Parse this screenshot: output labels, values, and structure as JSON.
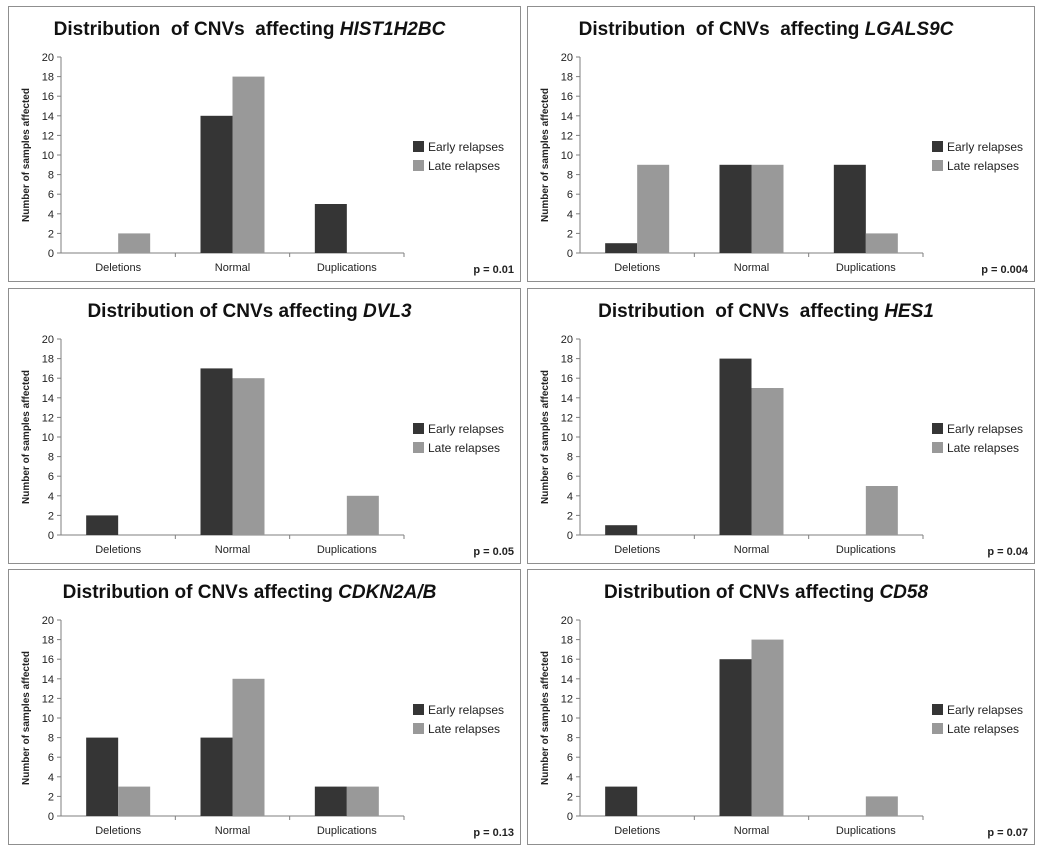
{
  "colors": {
    "early": "#353535",
    "late": "#999999",
    "axis": "#7f7f7f",
    "border": "#8f8f8f"
  },
  "chart_data": [
    {
      "type": "bar",
      "title_prefix": "Distribution  of CNVs  affecting ",
      "title_gene": "HIST1H2BC",
      "ylabel": "Number of samples affected",
      "ylim": [
        0,
        20
      ],
      "yticks": [
        "0",
        "2",
        "4",
        "6",
        "8",
        "10",
        "12",
        "14",
        "16",
        "18",
        "20"
      ],
      "categories": [
        "Deletions",
        "Normal",
        "Duplications"
      ],
      "series": [
        {
          "name": "Early relapses",
          "values": [
            0,
            14,
            5
          ]
        },
        {
          "name": "Late relapses",
          "values": [
            2,
            18,
            0
          ]
        }
      ],
      "p_value": "p = 0.01",
      "legend_position": "right"
    },
    {
      "type": "bar",
      "title_prefix": "Distribution  of CNVs  affecting ",
      "title_gene": "LGALS9C",
      "ylabel": "Number of samples affected",
      "ylim": [
        0,
        20
      ],
      "yticks": [
        "0",
        "2",
        "4",
        "6",
        "8",
        "10",
        "12",
        "14",
        "16",
        "18",
        "20"
      ],
      "categories": [
        "Deletions",
        "Normal",
        "Duplications"
      ],
      "series": [
        {
          "name": "Early relapses",
          "values": [
            1,
            9,
            9
          ]
        },
        {
          "name": "Late relapses",
          "values": [
            9,
            9,
            2
          ]
        }
      ],
      "p_value": "p = 0.004",
      "legend_position": "right"
    },
    {
      "type": "bar",
      "title_prefix": "Distribution of CNVs affecting ",
      "title_gene": "DVL3",
      "ylabel": "Number of samples affected",
      "ylim": [
        0,
        20
      ],
      "yticks": [
        "0",
        "2",
        "4",
        "6",
        "8",
        "10",
        "12",
        "14",
        "16",
        "18",
        "20"
      ],
      "categories": [
        "Deletions",
        "Normal",
        "Duplications"
      ],
      "series": [
        {
          "name": "Early relapses",
          "values": [
            2,
            17,
            0
          ]
        },
        {
          "name": "Late relapses",
          "values": [
            0,
            16,
            4
          ]
        }
      ],
      "p_value": "p = 0.05",
      "legend_position": "right"
    },
    {
      "type": "bar",
      "title_prefix": "Distribution  of CNVs  affecting ",
      "title_gene": "HES1",
      "ylabel": "Number of samples affected",
      "ylim": [
        0,
        20
      ],
      "yticks": [
        "0",
        "2",
        "4",
        "6",
        "8",
        "10",
        "12",
        "14",
        "16",
        "18",
        "20"
      ],
      "categories": [
        "Deletions",
        "Normal",
        "Duplications"
      ],
      "series": [
        {
          "name": "Early relapses",
          "values": [
            1,
            18,
            0
          ]
        },
        {
          "name": "Late relapses",
          "values": [
            0,
            15,
            5
          ]
        }
      ],
      "p_value": "p = 0.04",
      "legend_position": "right"
    },
    {
      "type": "bar",
      "title_prefix": "Distribution of CNVs affecting ",
      "title_gene": "CDKN2A/B",
      "ylabel": "Number of samples affected",
      "ylim": [
        0,
        20
      ],
      "yticks": [
        "0",
        "2",
        "4",
        "6",
        "8",
        "10",
        "12",
        "14",
        "16",
        "18",
        "20"
      ],
      "categories": [
        "Deletions",
        "Normal",
        "Duplications"
      ],
      "series": [
        {
          "name": "Early relapses",
          "values": [
            8,
            8,
            3
          ]
        },
        {
          "name": "Late relapses",
          "values": [
            3,
            14,
            3
          ]
        }
      ],
      "p_value": "p = 0.13",
      "legend_position": "right"
    },
    {
      "type": "bar",
      "title_prefix": "Distribution of CNVs affecting ",
      "title_gene": "CD58",
      "ylabel": "Number of samples affected",
      "ylim": [
        0,
        20
      ],
      "yticks": [
        "0",
        "2",
        "4",
        "6",
        "8",
        "10",
        "12",
        "14",
        "16",
        "18",
        "20"
      ],
      "categories": [
        "Deletions",
        "Normal",
        "Duplications"
      ],
      "series": [
        {
          "name": "Early relapses",
          "values": [
            3,
            16,
            0
          ]
        },
        {
          "name": "Late relapses",
          "values": [
            0,
            18,
            2
          ]
        }
      ],
      "p_value": "p = 0.07",
      "legend_position": "right"
    }
  ]
}
